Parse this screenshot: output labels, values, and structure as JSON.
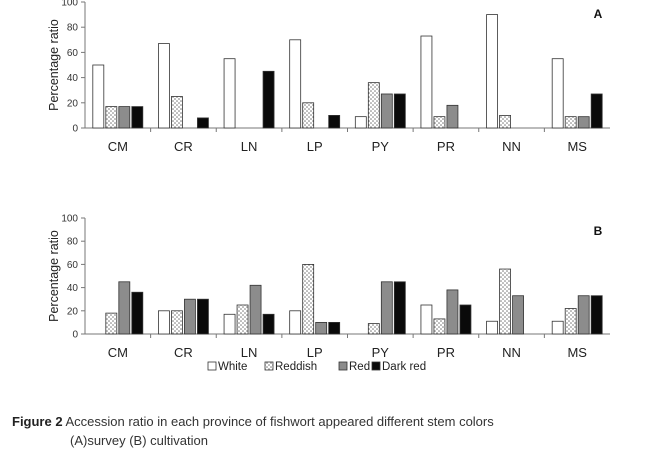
{
  "chart_data": [
    {
      "type": "bar",
      "panel": "A",
      "categories": [
        "CM",
        "CR",
        "LN",
        "LP",
        "PY",
        "PR",
        "NN",
        "MS"
      ],
      "series": [
        {
          "name": "White",
          "values": [
            50,
            67,
            55,
            70,
            9,
            73,
            90,
            55
          ]
        },
        {
          "name": "Reddish",
          "values": [
            17,
            25,
            0,
            20,
            36,
            9,
            10,
            9
          ]
        },
        {
          "name": "Red",
          "values": [
            17,
            0,
            0,
            0,
            27,
            18,
            0,
            9
          ]
        },
        {
          "name": "Dark red",
          "values": [
            17,
            8,
            45,
            10,
            27,
            0,
            0,
            27
          ]
        }
      ],
      "ylabel": "Percentage ratio",
      "ylim": [
        0,
        100
      ],
      "yticks": [
        "0",
        "20",
        "40",
        "60",
        "80",
        "100"
      ],
      "grid": false
    },
    {
      "type": "bar",
      "panel": "B",
      "categories": [
        "CM",
        "CR",
        "LN",
        "LP",
        "PY",
        "PR",
        "NN",
        "MS"
      ],
      "series": [
        {
          "name": "White",
          "values": [
            0,
            20,
            17,
            20,
            0,
            25,
            11,
            11
          ]
        },
        {
          "name": "Reddish",
          "values": [
            18,
            20,
            25,
            60,
            9,
            13,
            56,
            22
          ]
        },
        {
          "name": "Red",
          "values": [
            45,
            30,
            42,
            10,
            45,
            38,
            33,
            33
          ]
        },
        {
          "name": "Dark red",
          "values": [
            36,
            30,
            17,
            10,
            45,
            25,
            0,
            33
          ]
        }
      ],
      "ylabel": "Percentage ratio",
      "ylim": [
        0,
        100
      ],
      "yticks": [
        "0",
        "20",
        "40",
        "60",
        "80",
        "100"
      ],
      "grid": false
    }
  ],
  "legend": {
    "placement": "bottom",
    "entries": [
      "White",
      "Reddish",
      "Red",
      "Dark red"
    ]
  },
  "series_colors": {
    "White": "#ffffff",
    "Reddish": "#e6e6e6",
    "Red": "#8c8c8c",
    "Dark red": "#0a0a0a"
  },
  "caption": {
    "label": "Figure 2",
    "line1": "Accession ratio in each province of fishwort appeared different stem colors",
    "line2": "(A)survey (B) cultivation"
  }
}
